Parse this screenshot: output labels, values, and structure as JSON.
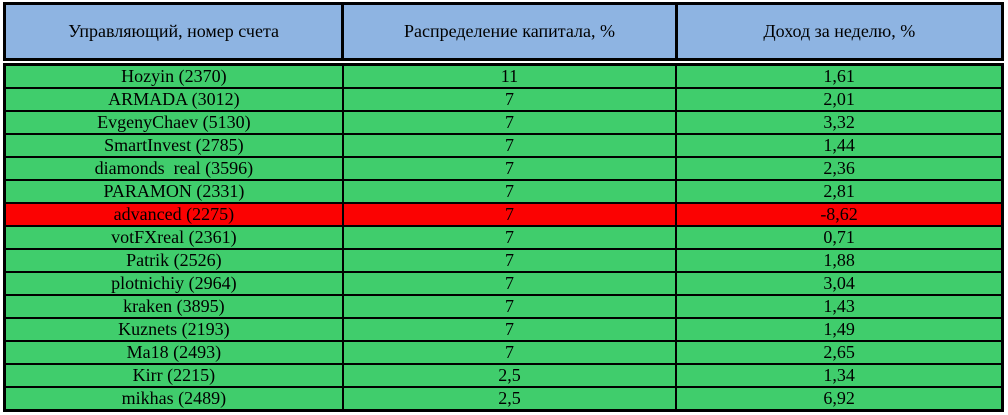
{
  "colors": {
    "page_bg": "#FFFFFF",
    "header_bg": "#8EB4E2",
    "row_bg": "#40CD6C",
    "alert_row_bg": "#FB0202",
    "border": "#000000",
    "text": "#000000"
  },
  "chart_data": {
    "type": "table",
    "columns": [
      "Управляющий, номер счета",
      "Распределение капитала, %",
      "Доход за неделю, %"
    ],
    "rows": [
      {
        "cells": [
          "Hozyin (2370)",
          "11",
          "1,61"
        ],
        "highlight": false
      },
      {
        "cells": [
          "ARMADA (3012)",
          "7",
          "2,01"
        ],
        "highlight": false
      },
      {
        "cells": [
          "EvgenyChaev (5130)",
          "7",
          "3,32"
        ],
        "highlight": false
      },
      {
        "cells": [
          "SmartInvest (2785)",
          "7",
          "1,44"
        ],
        "highlight": false
      },
      {
        "cells": [
          "diamonds  real (3596)",
          "7",
          "2,36"
        ],
        "highlight": false
      },
      {
        "cells": [
          "PARAMON (2331)",
          "7",
          "2,81"
        ],
        "highlight": false
      },
      {
        "cells": [
          "advanced (2275)",
          "7",
          "-8,62"
        ],
        "highlight": true
      },
      {
        "cells": [
          "votFXreal (2361)",
          "7",
          "0,71"
        ],
        "highlight": false
      },
      {
        "cells": [
          "Patrik (2526)",
          "7",
          "1,88"
        ],
        "highlight": false
      },
      {
        "cells": [
          "plotnichiy (2964)",
          "7",
          "3,04"
        ],
        "highlight": false
      },
      {
        "cells": [
          "kraken (3895)",
          "7",
          "1,43"
        ],
        "highlight": false
      },
      {
        "cells": [
          "Kuznets (2193)",
          "7",
          "1,49"
        ],
        "highlight": false
      },
      {
        "cells": [
          "Ma18 (2493)",
          "7",
          "2,65"
        ],
        "highlight": false
      },
      {
        "cells": [
          "Kirr (2215)",
          "2,5",
          "1,34"
        ],
        "highlight": false
      },
      {
        "cells": [
          "mikhas (2489)",
          "2,5",
          "6,92"
        ],
        "highlight": false
      }
    ],
    "layout": {
      "column_widths_pct": [
        33.9,
        33.4,
        32.7
      ],
      "highlighted_row_label": "advanced (2275)"
    }
  }
}
